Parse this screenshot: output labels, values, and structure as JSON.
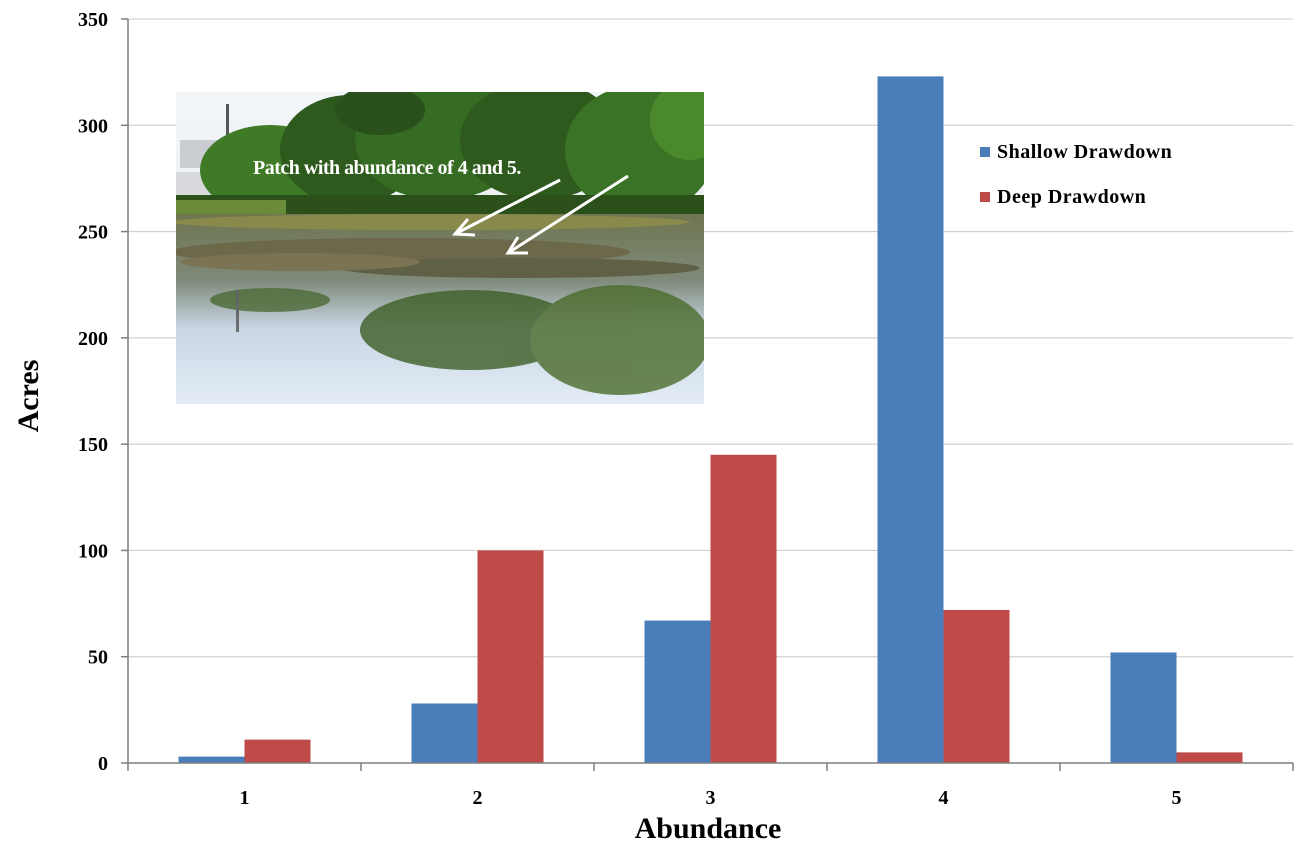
{
  "chart_data": {
    "type": "bar",
    "title": "",
    "xlabel": "Abundance",
    "ylabel": "Acres",
    "categories": [
      "1",
      "2",
      "3",
      "4",
      "5"
    ],
    "series": [
      {
        "name": "Shallow Drawdown",
        "values": [
          3,
          28,
          67,
          323,
          52
        ],
        "color": "#4a7ebb"
      },
      {
        "name": "Deep Drawdown",
        "values": [
          11,
          100,
          145,
          72,
          5
        ],
        "color": "#be4b48"
      }
    ],
    "ylim": [
      0,
      350
    ],
    "yticks": [
      "0",
      "50",
      "100",
      "150",
      "200",
      "250",
      "300",
      "350"
    ],
    "grid": true,
    "legend_position": "top-right"
  },
  "inset_photo": {
    "caption": "Patch with abundance of 4 and 5.",
    "icon": "pond-photo"
  }
}
